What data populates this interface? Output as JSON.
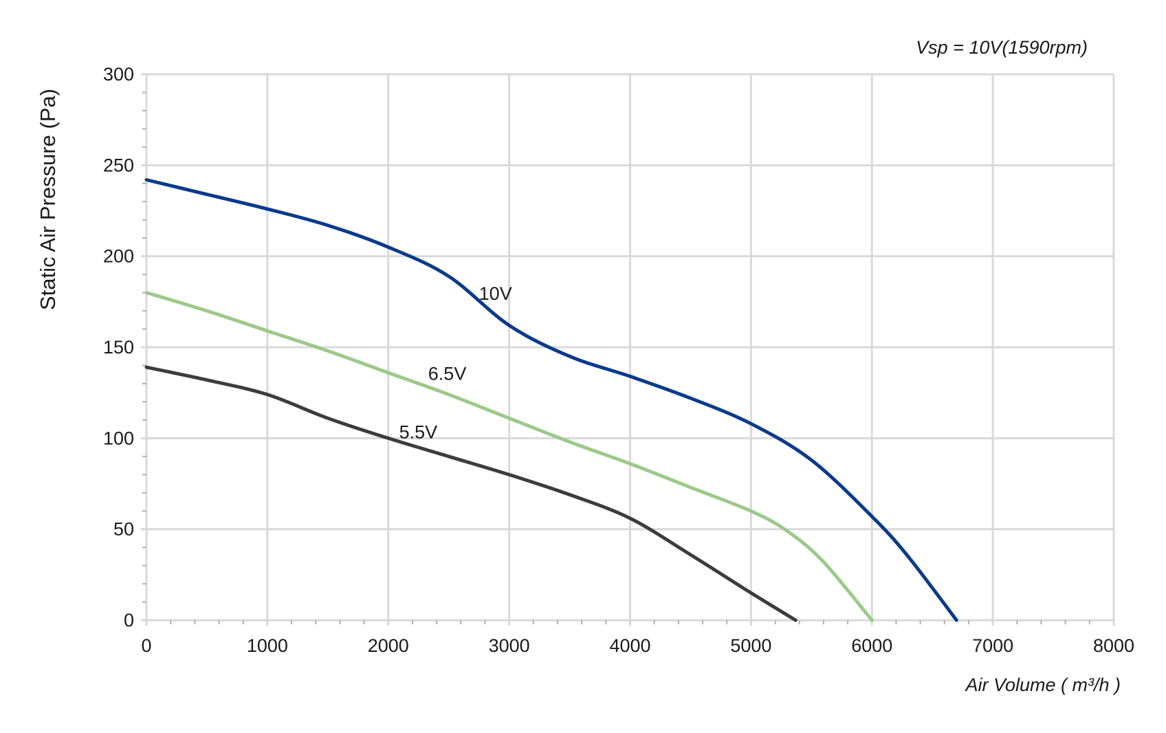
{
  "chart_data": {
    "type": "line",
    "title": "",
    "annotation": "Vsp = 10V(1590rpm)",
    "xlabel": "Air Volume ( m³/h )",
    "ylabel": "Static Air Pressure  (Pa)",
    "xlim": [
      0,
      8000
    ],
    "ylim": [
      0,
      300
    ],
    "xticks": [
      0,
      1000,
      2000,
      3000,
      4000,
      5000,
      6000,
      7000,
      8000
    ],
    "yticks": [
      0,
      50,
      100,
      150,
      200,
      250,
      300
    ],
    "grid": true,
    "legend": "none",
    "series": [
      {
        "name": "10V",
        "color": "#0b3a8c",
        "x": [
          0,
          500,
          1000,
          1500,
          2000,
          2500,
          3000,
          3500,
          4000,
          4500,
          5000,
          5500,
          6000,
          6300,
          6700
        ],
        "y": [
          242,
          234,
          226,
          217,
          205,
          189,
          162,
          145,
          134,
          122,
          108,
          88,
          57,
          35,
          0
        ]
      },
      {
        "name": "6.5V",
        "color": "#9cc98a",
        "x": [
          0,
          500,
          1000,
          1500,
          2000,
          2500,
          3000,
          3500,
          4000,
          4500,
          5000,
          5300,
          5600,
          6000
        ],
        "y": [
          180,
          170,
          159,
          148,
          136,
          124,
          111,
          98,
          86,
          73,
          60,
          49,
          32,
          0
        ]
      },
      {
        "name": "5.5V",
        "color": "#3c3c3c",
        "x": [
          0,
          500,
          1000,
          1500,
          2000,
          2500,
          3000,
          3500,
          4000,
          4500,
          5000,
          5370
        ],
        "y": [
          139,
          132,
          124,
          111,
          100,
          90,
          80,
          69,
          56,
          36,
          15,
          0
        ]
      }
    ],
    "series_labels": [
      {
        "text": "10V",
        "x": 2750,
        "y": 176
      },
      {
        "text": "6.5V",
        "x": 2330,
        "y": 132
      },
      {
        "text": "5.5V",
        "x": 2090,
        "y": 100
      }
    ]
  }
}
